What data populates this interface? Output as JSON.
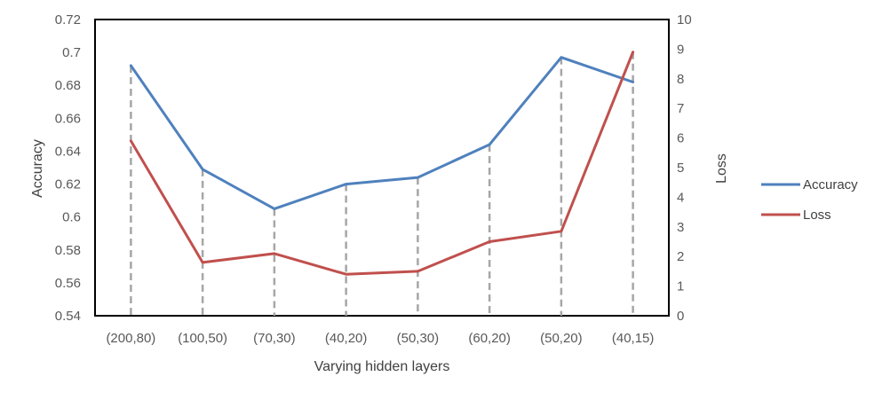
{
  "chart_data": {
    "type": "line",
    "categories": [
      "(200,80)",
      "(100,50)",
      "(70,30)",
      "(40,20)",
      "(50,30)",
      "(60,20)",
      "(50,20)",
      "(40,15)"
    ],
    "series": [
      {
        "name": "Accuracy",
        "axis": "left",
        "color": "#4F81BD",
        "values": [
          0.692,
          0.629,
          0.605,
          0.62,
          0.624,
          0.644,
          0.697,
          0.682
        ]
      },
      {
        "name": "Loss",
        "axis": "right",
        "color": "#C0504D",
        "values": [
          5.9,
          1.8,
          2.1,
          1.4,
          1.5,
          2.5,
          2.85,
          8.9
        ]
      }
    ],
    "xlabel": "Varying hidden layers",
    "ylabel": "Accuracy",
    "y2label": "Loss",
    "ylim": [
      0.54,
      0.72
    ],
    "y_ticks": [
      "0.54",
      "0.56",
      "0.58",
      "0.6",
      "0.62",
      "0.64",
      "0.66",
      "0.68",
      "0.7",
      "0.72"
    ],
    "y2lim": [
      0,
      10
    ],
    "y2_ticks": [
      "0",
      "1",
      "2",
      "3",
      "4",
      "5",
      "6",
      "7",
      "8",
      "9",
      "10"
    ],
    "drop_lines": "dashed grey verticals at each category",
    "grid": false,
    "legend_position": "right"
  }
}
